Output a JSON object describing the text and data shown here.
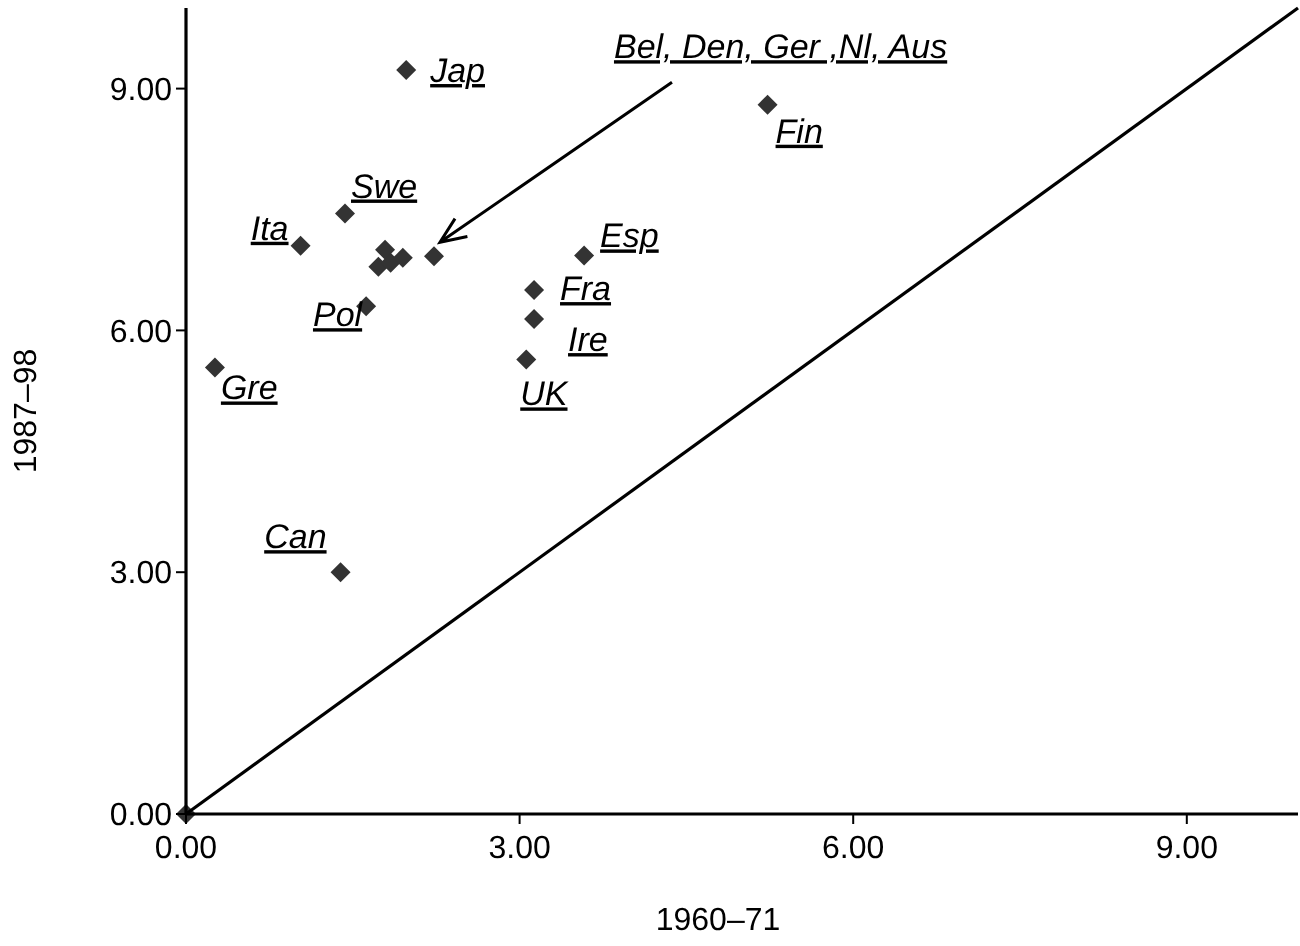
{
  "chart_data": {
    "type": "scatter",
    "xlabel": "1960–71",
    "ylabel": "1987–98",
    "xlim": [
      0,
      10
    ],
    "ylim": [
      0,
      10
    ],
    "xticks": [
      {
        "value": 0,
        "label": "0.00"
      },
      {
        "value": 3,
        "label": "3.00"
      },
      {
        "value": 6,
        "label": "6.00"
      },
      {
        "value": 9,
        "label": "9.00"
      }
    ],
    "yticks": [
      {
        "value": 0,
        "label": "0.00"
      },
      {
        "value": 3,
        "label": "3.00"
      },
      {
        "value": 6,
        "label": "6.00"
      },
      {
        "value": 9,
        "label": "9.00"
      }
    ],
    "grid": false,
    "marker": "diamond",
    "series": [
      {
        "color": "#333333",
        "x": [
          0,
          1.98,
          1.43,
          1.03,
          1.79,
          1.73,
          1.84,
          1.95,
          2.23,
          1.62,
          0.26,
          3.13,
          3.13,
          3.06,
          3.58,
          5.23,
          1.39
        ],
        "values": [
          0,
          9.23,
          7.45,
          7.05,
          7.0,
          6.79,
          6.84,
          6.9,
          6.92,
          6.3,
          5.54,
          6.5,
          6.14,
          5.64,
          6.93,
          8.8,
          3.0
        ]
      },
      {
        "type": "line",
        "color": "#000000",
        "marker": "none",
        "line_style": "solid",
        "x": [
          0,
          10
        ],
        "values": [
          0,
          10
        ]
      }
    ],
    "annotations": [
      {
        "text": "Jap",
        "x": 1.98,
        "y": 9.23
      },
      {
        "text": "Swe",
        "x": 1.43,
        "y": 7.45
      },
      {
        "text": "Ita",
        "x": 1.03,
        "y": 7.05
      },
      {
        "text": "Pol",
        "x": 1.62,
        "y": 6.3
      },
      {
        "text": "Gre",
        "x": 0.26,
        "y": 5.54
      },
      {
        "text": "Fra",
        "x": 3.13,
        "y": 6.5
      },
      {
        "text": "Ire",
        "x": 3.13,
        "y": 6.14
      },
      {
        "text": "UK",
        "x": 3.06,
        "y": 5.64
      },
      {
        "text": "Esp",
        "x": 3.58,
        "y": 6.93
      },
      {
        "text": "Fin",
        "x": 5.23,
        "y": 8.8
      },
      {
        "text": "Can",
        "x": 1.39,
        "y": 3.0
      },
      {
        "text": "Bel, Den, Ger ,Nl, Aus",
        "x": 2.23,
        "y": 6.92
      }
    ]
  }
}
